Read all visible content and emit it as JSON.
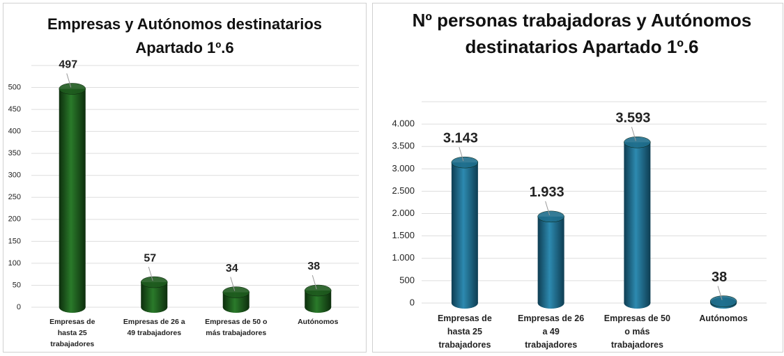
{
  "chart_data": [
    {
      "type": "bar",
      "title": "Empresas y Autónomos destinatarios Apartado 1º.6",
      "categories": [
        "Empresas de hasta 25 trabajadores",
        "Empresas de 26 a 49 trabajadores",
        "Empresas de 50 o más trabajadores",
        "Autónomos"
      ],
      "values": [
        497,
        57,
        34,
        38
      ],
      "color": "#1e5a1e",
      "ylim": [
        0,
        550
      ],
      "yticks": [
        0,
        50,
        100,
        150,
        200,
        250,
        300,
        350,
        400,
        450,
        500
      ],
      "grid": true
    },
    {
      "type": "bar",
      "title": "Nº personas trabajadoras y Autónomos destinatarios Apartado 1º.6",
      "categories": [
        "Empresas de hasta 25 trabajadores",
        "Empresas de 26 a 49 trabajadores",
        "Empresas de 50 o más trabajadores",
        "Autónomos"
      ],
      "values": [
        3143,
        1933,
        3593,
        38
      ],
      "value_labels": [
        "3.143",
        "1.933",
        "3.593",
        "38"
      ],
      "color": "#1f6e8c",
      "ylim": [
        0,
        4500
      ],
      "yticks": [
        0,
        500,
        {
          "value": 1000,
          "label": "1.000"
        },
        {
          "value": 1500,
          "label": "1.500"
        },
        {
          "value": 2000,
          "label": "2.000"
        },
        {
          "value": 2500,
          "label": "2.500"
        },
        {
          "value": 3000,
          "label": "3.000"
        },
        {
          "value": 3500,
          "label": "3.500"
        },
        {
          "value": 4000,
          "label": "4.000"
        }
      ],
      "grid": true
    }
  ]
}
